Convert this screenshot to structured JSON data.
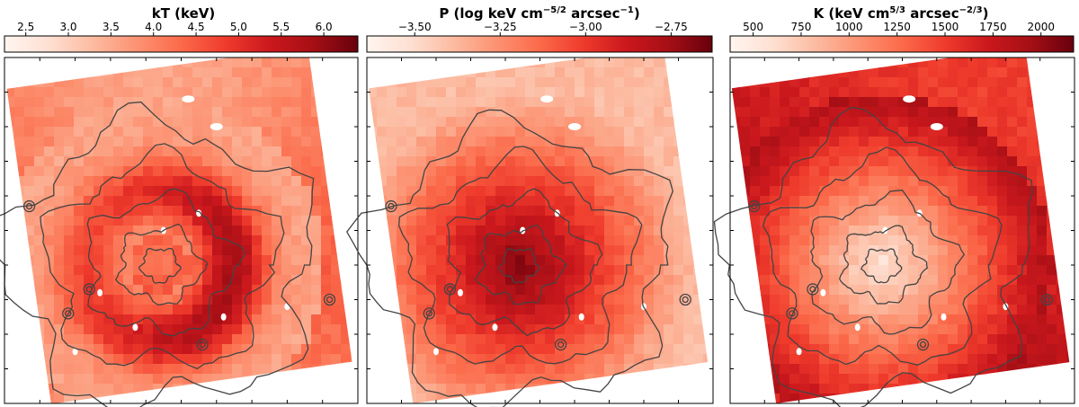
{
  "chart_data": [
    {
      "type": "heatmap",
      "title": "kT (keV)",
      "title_parts": {
        "main": "kT (keV)"
      },
      "colorbar": {
        "min": 2.25,
        "max": 6.4,
        "ticks": [
          2.5,
          3.0,
          3.5,
          4.0,
          4.5,
          5.0,
          5.5,
          6.0
        ],
        "tick_labels": [
          "2.5",
          "3.0",
          "3.5",
          "4.0",
          "4.5",
          "5.0",
          "5.5",
          "6.0"
        ]
      },
      "pattern": "hot-shell",
      "corner_level": 0.42
    },
    {
      "type": "heatmap",
      "title": "P (log keV cm^-5/2 arcsec^-1)",
      "title_parts": {
        "main": "P (log keV cm",
        "exp1": "−5/2",
        "mid": " arcsec",
        "exp2": "−1",
        "end": ")"
      },
      "colorbar": {
        "min": -3.64,
        "max": -2.63,
        "ticks": [
          -3.5,
          -3.25,
          -3.0,
          -2.75
        ],
        "tick_labels": [
          "−3.50",
          "−3.25",
          "−3.00",
          "−2.75"
        ]
      },
      "pattern": "peaked-center",
      "corner_level": 0.2
    },
    {
      "type": "heatmap",
      "title": "K (keV cm^5/3 arcsec^-2/3)",
      "title_parts": {
        "main": "K (keV cm",
        "exp1": "5/3",
        "mid": " arcsec",
        "exp2": "−2/3",
        "end": ")"
      },
      "colorbar": {
        "min": 380,
        "max": 2170,
        "ticks": [
          500,
          750,
          1000,
          1250,
          1500,
          1750,
          2000
        ],
        "tick_labels": [
          "500",
          "750",
          "1000",
          "1250",
          "1500",
          "1750",
          "2000"
        ]
      },
      "pattern": "low-center",
      "corner_level": 0.72
    }
  ],
  "colors": {
    "cmap": [
      "#fff5f0",
      "#fee0d2",
      "#fcbba1",
      "#fc9272",
      "#fb6a4a",
      "#ef3b2c",
      "#cb181d",
      "#a50f15",
      "#67000d"
    ],
    "contour": "#444444",
    "frame": "#000000"
  }
}
